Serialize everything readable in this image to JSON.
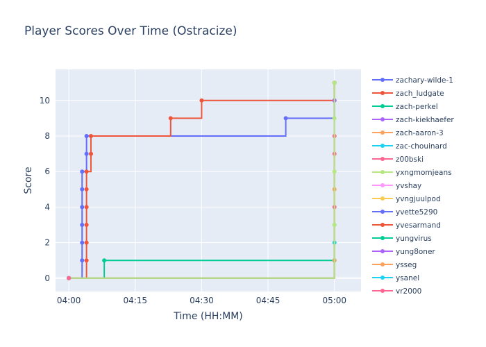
{
  "chart_data": {
    "type": "line",
    "title": "Player Scores Over Time (Ostracize)",
    "xlabel": "Time (HH:MM)",
    "ylabel": "Score",
    "x_ticks": [
      "04:00",
      "04:15",
      "04:30",
      "04:45",
      "05:00"
    ],
    "y_ticks": [
      0,
      2,
      4,
      6,
      8,
      10
    ],
    "xlim": [
      "03:57",
      "05:06"
    ],
    "ylim": [
      -0.75,
      11.75
    ],
    "line_shape": "step",
    "grid": true,
    "legend_position": "right",
    "series": [
      {
        "name": "zachary-wilde-1",
        "color": "#636efa",
        "points": [
          [
            "04:00",
            0
          ],
          [
            "04:03",
            1
          ],
          [
            "04:03",
            2
          ],
          [
            "04:03",
            3
          ],
          [
            "04:03",
            4
          ],
          [
            "04:03",
            5
          ],
          [
            "04:03",
            6
          ],
          [
            "04:04",
            7
          ],
          [
            "04:04",
            8
          ],
          [
            "04:49",
            9
          ],
          [
            "05:00",
            10
          ],
          [
            "05:00",
            11
          ]
        ]
      },
      {
        "name": "zach_ludgate",
        "color": "#ef553b",
        "points": [
          [
            "04:00",
            0
          ],
          [
            "04:04",
            1
          ],
          [
            "04:04",
            2
          ],
          [
            "04:04",
            3
          ],
          [
            "04:04",
            4
          ],
          [
            "04:04",
            5
          ],
          [
            "04:04",
            6
          ],
          [
            "04:05",
            7
          ],
          [
            "04:05",
            8
          ],
          [
            "04:23",
            9
          ],
          [
            "04:30",
            10
          ],
          [
            "05:00",
            11
          ]
        ]
      },
      {
        "name": "zach-perkel",
        "color": "#00cc96",
        "points": [
          [
            "04:00",
            0
          ],
          [
            "04:08",
            1
          ],
          [
            "05:00",
            1
          ]
        ]
      },
      {
        "name": "zach-kiekhaefer",
        "color": "#ab63fa",
        "points": [
          [
            "04:00",
            0
          ],
          [
            "05:00",
            10
          ]
        ]
      },
      {
        "name": "zach-aaron-3",
        "color": "#ffa15a",
        "points": [
          [
            "04:00",
            0
          ],
          [
            "05:00",
            1
          ],
          [
            "05:00",
            5
          ]
        ]
      },
      {
        "name": "zac-chouinard",
        "color": "#19d3f3",
        "points": [
          [
            "04:00",
            0
          ],
          [
            "05:00",
            2
          ],
          [
            "05:00",
            3
          ]
        ]
      },
      {
        "name": "z00bski",
        "color": "#ff6692",
        "points": [
          [
            "04:00",
            0
          ],
          [
            "05:00",
            4
          ],
          [
            "05:00",
            7
          ],
          [
            "05:00",
            8
          ]
        ]
      },
      {
        "name": "yxngmomjeans",
        "color": "#b6e880",
        "points": [
          [
            "04:00",
            0
          ],
          [
            "05:00",
            3
          ],
          [
            "05:00",
            6
          ],
          [
            "05:00",
            9
          ],
          [
            "05:00",
            11
          ]
        ]
      },
      {
        "name": "yvshay",
        "color": "#ff97ff",
        "points": [
          [
            "04:00",
            0
          ]
        ]
      },
      {
        "name": "yvngjuulpod",
        "color": "#fecb52",
        "points": [
          [
            "04:00",
            0
          ]
        ]
      },
      {
        "name": "yvette5290",
        "color": "#636efa",
        "points": [
          [
            "04:00",
            0
          ]
        ]
      },
      {
        "name": "yvesarmand",
        "color": "#ef553b",
        "points": [
          [
            "04:00",
            0
          ]
        ]
      },
      {
        "name": "yungvirus",
        "color": "#00cc96",
        "points": [
          [
            "04:00",
            0
          ]
        ]
      },
      {
        "name": "yung8oner",
        "color": "#ab63fa",
        "points": [
          [
            "04:00",
            0
          ]
        ]
      },
      {
        "name": "ysseg",
        "color": "#ffa15a",
        "points": [
          [
            "04:00",
            0
          ]
        ]
      },
      {
        "name": "ysanel",
        "color": "#19d3f3",
        "points": [
          [
            "04:00",
            0
          ]
        ]
      },
      {
        "name": "yr2000",
        "color": "#ff6692",
        "points": [
          [
            "04:00",
            0
          ]
        ]
      }
    ]
  }
}
